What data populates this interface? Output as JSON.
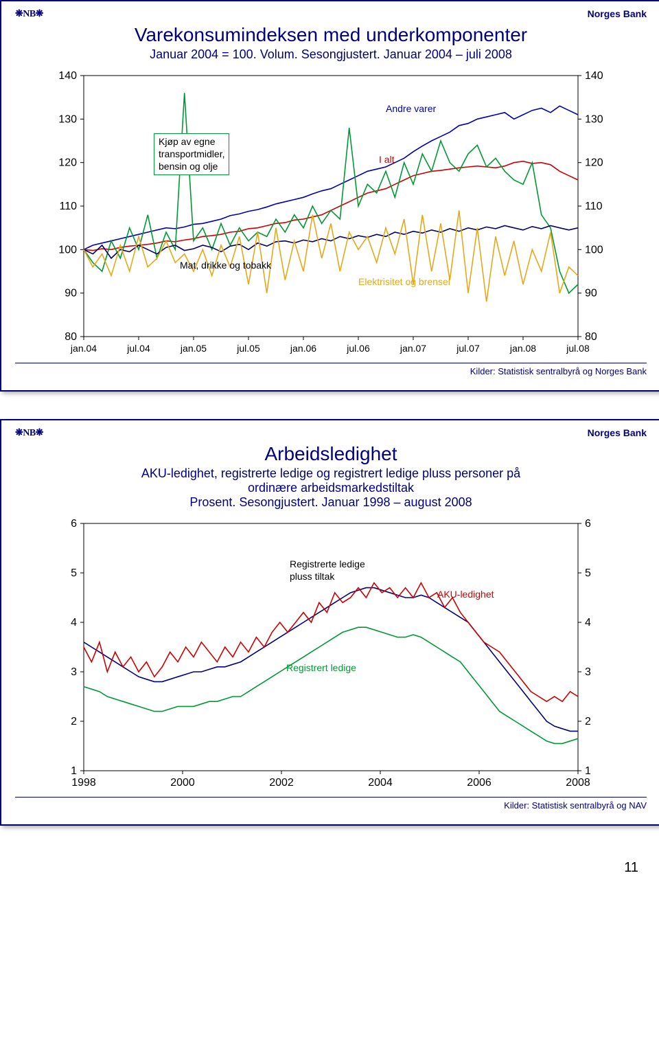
{
  "page_number": "11",
  "brand": {
    "logo": "❋NB❋",
    "name": "Norges Bank"
  },
  "chart1": {
    "type": "line",
    "title": "Varekonsumindeksen med underkomponenter",
    "subtitle": "Januar 2004 = 100. Volum. Sesongjustert. Januar 2004 – juli 2008",
    "source": "Kilder: Statistisk sentralbyrå og Norges Bank",
    "ylim": [
      80,
      140
    ],
    "ytick_step": 10,
    "yticks": [
      "80",
      "90",
      "100",
      "110",
      "120",
      "130",
      "140"
    ],
    "xticks": [
      "jan.04",
      "jul.04",
      "jan.05",
      "jul.05",
      "jan.06",
      "jul.06",
      "jan.07",
      "jul.07",
      "jan.08",
      "jul.08"
    ],
    "background_color": "#ffffff",
    "axis_color": "#000000",
    "line_width": 1.6,
    "series": {
      "andre_varer": {
        "label": "Andre varer",
        "color": "#0000b3",
        "data": [
          100,
          101,
          101.5,
          102,
          102.5,
          103,
          103.5,
          104,
          104.5,
          105,
          104.8,
          105.2,
          105.8,
          106,
          106.5,
          107,
          107.8,
          108.2,
          108.8,
          109.2,
          109.8,
          110.5,
          111,
          111.5,
          112,
          112.8,
          113.5,
          114,
          115,
          116,
          117,
          118,
          118.5,
          119,
          120,
          121,
          122.5,
          123.8,
          125,
          126,
          127,
          128.5,
          129,
          130,
          130.5,
          131,
          131.5,
          130,
          131,
          132,
          132.5,
          131.5,
          133,
          132,
          131
        ]
      },
      "i_alt": {
        "label": "I alt",
        "color": "#cc0000",
        "data": [
          100,
          99.8,
          100.2,
          100,
          100.5,
          100.8,
          101,
          101.2,
          101.5,
          102,
          101.8,
          102.2,
          102.5,
          103,
          103.2,
          103.5,
          104,
          104.2,
          104.8,
          105,
          105.5,
          106,
          106.2,
          106.8,
          107,
          107.5,
          108,
          109,
          110,
          111,
          112,
          113,
          113.5,
          114,
          115,
          116,
          117,
          117.5,
          118,
          118.2,
          118.5,
          118.8,
          119,
          119.2,
          119,
          118.8,
          119.2,
          120,
          120.3,
          119.8,
          120,
          119.5,
          118,
          117,
          116
        ]
      },
      "transport": {
        "label_l1": "Kjøp av egne",
        "label_l2": "transportmidler,",
        "label_l3": "bensin og olje",
        "color": "#009933",
        "data": [
          100,
          97,
          95,
          102,
          98,
          105,
          100,
          108,
          98,
          104,
          100,
          136,
          102,
          105,
          100,
          106,
          101,
          105,
          102,
          104,
          103,
          107,
          104,
          108,
          105,
          110,
          106,
          109,
          107,
          128,
          110,
          115,
          113,
          118,
          112,
          120,
          115,
          122,
          118,
          125,
          120,
          118,
          122,
          124,
          119,
          121,
          118,
          116,
          115,
          120,
          108,
          105,
          95,
          90,
          92
        ]
      },
      "mat": {
        "label": "Mat, drikke og tobakk",
        "color": "#000066",
        "data": [
          100,
          99,
          101,
          98,
          100,
          99.5,
          101,
          100,
          99,
          100.5,
          101,
          99.8,
          100.2,
          101,
          100.5,
          99.5,
          100.8,
          101.2,
          100,
          101.5,
          100.8,
          101.8,
          102,
          101.5,
          102.2,
          101.8,
          102.5,
          102,
          103,
          102.5,
          103.2,
          102.8,
          103.5,
          103,
          104,
          103.5,
          104.2,
          103.8,
          104.5,
          104,
          104.8,
          104.2,
          105,
          104.5,
          105.2,
          104.8,
          105.5,
          105,
          104.5,
          105.3,
          104.8,
          105.5,
          105,
          104.5,
          105
        ]
      },
      "elektrisitet": {
        "label": "Elektrisitet og brensel",
        "color": "#e6a817",
        "data": [
          100,
          96,
          99,
          94,
          101,
          95,
          103,
          96,
          98,
          102,
          97,
          99,
          95,
          100,
          94,
          101,
          96,
          103,
          92,
          104,
          90,
          105,
          93,
          102,
          95,
          108,
          98,
          106,
          95,
          104,
          100,
          103,
          97,
          105,
          99,
          107,
          92,
          108,
          95,
          106,
          93,
          109,
          90,
          105,
          88,
          103,
          94,
          102,
          92,
          100,
          95,
          104,
          90,
          96,
          94
        ]
      }
    }
  },
  "chart2": {
    "type": "line",
    "title": "Arbeidsledighet",
    "subtitle_l1": "AKU-ledighet, registrerte ledige og registrert ledige pluss personer på",
    "subtitle_l2": "ordinære arbeidsmarkedstiltak",
    "subtitle_l3": "Prosent. Sesongjustert. Januar 1998 – august 2008",
    "source": "Kilder: Statistisk sentralbyrå og NAV",
    "ylim": [
      1,
      6
    ],
    "ytick_step": 1,
    "yticks": [
      "1",
      "2",
      "3",
      "4",
      "5",
      "6"
    ],
    "xticks": [
      "1998",
      "2000",
      "2002",
      "2004",
      "2006",
      "2008"
    ],
    "background_color": "#ffffff",
    "axis_color": "#000000",
    "line_width": 1.6,
    "series": {
      "registrerte_pluss": {
        "label_l1": "Registrerte ledige",
        "label_l2": "pluss tiltak",
        "color": "#000080",
        "data": [
          3.6,
          3.5,
          3.4,
          3.3,
          3.2,
          3.1,
          3.0,
          2.9,
          2.85,
          2.8,
          2.8,
          2.85,
          2.9,
          2.95,
          3.0,
          3.0,
          3.05,
          3.1,
          3.1,
          3.15,
          3.2,
          3.3,
          3.4,
          3.5,
          3.6,
          3.7,
          3.8,
          3.9,
          4.0,
          4.1,
          4.2,
          4.3,
          4.4,
          4.5,
          4.6,
          4.65,
          4.7,
          4.7,
          4.65,
          4.6,
          4.55,
          4.5,
          4.5,
          4.55,
          4.5,
          4.4,
          4.3,
          4.2,
          4.1,
          4.0,
          3.8,
          3.6,
          3.4,
          3.2,
          3.0,
          2.8,
          2.6,
          2.4,
          2.2,
          2.0,
          1.9,
          1.85,
          1.8,
          1.8
        ]
      },
      "aku": {
        "label": "AKU-ledighet",
        "color": "#cc0000",
        "data": [
          3.5,
          3.2,
          3.6,
          3.0,
          3.4,
          3.1,
          3.3,
          3.0,
          3.2,
          2.9,
          3.1,
          3.4,
          3.2,
          3.5,
          3.3,
          3.6,
          3.4,
          3.2,
          3.5,
          3.3,
          3.6,
          3.4,
          3.7,
          3.5,
          3.8,
          4.0,
          3.8,
          4.0,
          4.2,
          4.0,
          4.4,
          4.2,
          4.6,
          4.4,
          4.5,
          4.7,
          4.5,
          4.8,
          4.6,
          4.7,
          4.5,
          4.7,
          4.5,
          4.8,
          4.5,
          4.6,
          4.3,
          4.5,
          4.2,
          4.0,
          3.8,
          3.6,
          3.5,
          3.4,
          3.2,
          3.0,
          2.8,
          2.6,
          2.5,
          2.4,
          2.5,
          2.4,
          2.6,
          2.5
        ]
      },
      "registrert": {
        "label": "Registrert ledige",
        "color": "#009933",
        "data": [
          2.7,
          2.65,
          2.6,
          2.5,
          2.45,
          2.4,
          2.35,
          2.3,
          2.25,
          2.2,
          2.2,
          2.25,
          2.3,
          2.3,
          2.3,
          2.35,
          2.4,
          2.4,
          2.45,
          2.5,
          2.5,
          2.6,
          2.7,
          2.8,
          2.9,
          3.0,
          3.1,
          3.2,
          3.3,
          3.4,
          3.5,
          3.6,
          3.7,
          3.8,
          3.85,
          3.9,
          3.9,
          3.85,
          3.8,
          3.75,
          3.7,
          3.7,
          3.75,
          3.7,
          3.6,
          3.5,
          3.4,
          3.3,
          3.2,
          3.0,
          2.8,
          2.6,
          2.4,
          2.2,
          2.1,
          2.0,
          1.9,
          1.8,
          1.7,
          1.6,
          1.55,
          1.55,
          1.6,
          1.65
        ]
      }
    }
  }
}
